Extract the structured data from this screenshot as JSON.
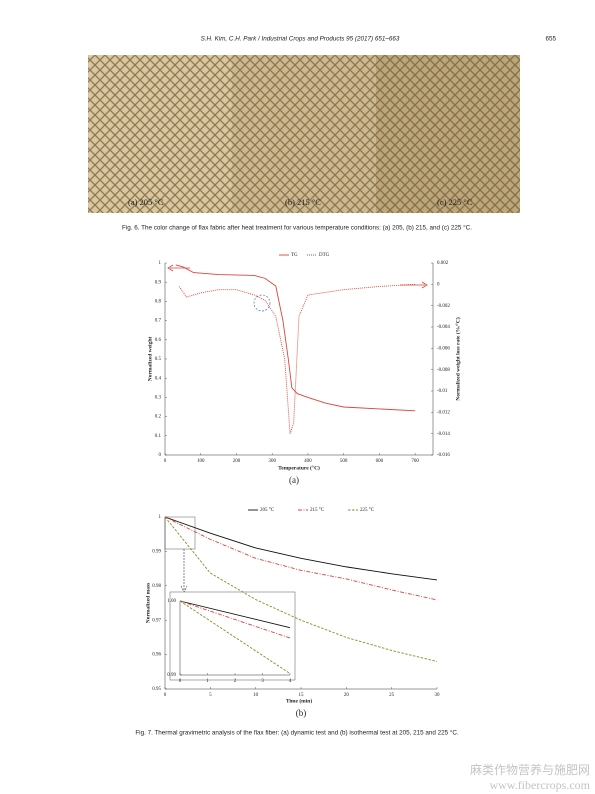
{
  "header": {
    "citation": "S.H. Kim, C.H. Park / Industrial Crops and Products 95 (2017) 651–663",
    "page": "655"
  },
  "figure6": {
    "labels": [
      "(a) 205 °C",
      "(b) 215 °C",
      "(c) 225 °C"
    ],
    "caption": "Fig. 6. The color change of flax fabric after heat treatment for various temperature conditions: (a) 205, (b) 215, and (c) 225 °C."
  },
  "chart_a": {
    "type": "line",
    "label": "(a)",
    "xlabel": "Temperature (°C)",
    "ylabel": "Normalized weight",
    "y2label": "Normalized weight loss rate (%/°C)",
    "xlim": [
      0,
      750
    ],
    "xticks": [
      0,
      100,
      200,
      300,
      400,
      500,
      600,
      700
    ],
    "ylim": [
      0,
      1
    ],
    "yticks": [
      0,
      0.1,
      0.2,
      0.3,
      0.4,
      0.5,
      0.6,
      0.7,
      0.8,
      0.9,
      1
    ],
    "y2lim": [
      -0.016,
      0.002
    ],
    "y2ticks": [
      -0.016,
      -0.014,
      -0.012,
      -0.01,
      -0.008,
      -0.006,
      -0.004,
      -0.002,
      0,
      0.002
    ],
    "series": [
      {
        "name": "TG",
        "color": "#d9453a",
        "dash": "solid",
        "x": [
          30,
          50,
          80,
          150,
          250,
          280,
          310,
          330,
          345,
          355,
          370,
          400,
          450,
          500,
          600,
          700
        ],
        "values": [
          0.99,
          0.98,
          0.95,
          0.94,
          0.935,
          0.92,
          0.88,
          0.7,
          0.5,
          0.35,
          0.32,
          0.3,
          0.27,
          0.25,
          0.24,
          0.23
        ]
      },
      {
        "name": "DTG",
        "color": "#d9453a",
        "dash": "dotted",
        "axis": "y2",
        "x": [
          40,
          60,
          100,
          150,
          200,
          250,
          280,
          310,
          335,
          350,
          360,
          375,
          400,
          500,
          600,
          700
        ],
        "values": [
          -0.0002,
          -0.0012,
          -0.0008,
          -0.0005,
          -0.0005,
          -0.001,
          -0.0015,
          -0.003,
          -0.007,
          -0.014,
          -0.013,
          -0.003,
          -0.001,
          -0.0005,
          -0.0002,
          0
        ]
      }
    ]
  },
  "chart_b": {
    "type": "line",
    "label": "(b)",
    "xlabel": "Time (min)",
    "ylabel": "Normalized mass",
    "xlim": [
      0,
      30
    ],
    "xticks": [
      0,
      5,
      10,
      15,
      20,
      25,
      30
    ],
    "ylim": [
      0.95,
      1
    ],
    "yticks": [
      0.95,
      0.96,
      0.97,
      0.98,
      0.99,
      1
    ],
    "series": [
      {
        "name": "205 °C",
        "color": "#111111",
        "dash": "solid",
        "x": [
          0,
          5,
          10,
          15,
          20,
          25,
          30
        ],
        "values": [
          1,
          0.9953,
          0.991,
          0.988,
          0.9855,
          0.9835,
          0.9817
        ]
      },
      {
        "name": "215 °C",
        "color": "#d9453a",
        "dash": "dashdot",
        "x": [
          0,
          5,
          10,
          15,
          20,
          25,
          30
        ],
        "values": [
          1,
          0.9935,
          0.988,
          0.9845,
          0.982,
          0.9788,
          0.9759
        ]
      },
      {
        "name": "225 °C",
        "color": "#8a8a2a",
        "dash": "dashed",
        "x": [
          0,
          5,
          10,
          15,
          20,
          25,
          30
        ],
        "values": [
          1,
          0.9837,
          0.976,
          0.97,
          0.965,
          0.9612,
          0.958
        ]
      }
    ],
    "inset": {
      "xlim": [
        0,
        4
      ],
      "xticks": [
        0,
        1,
        2,
        3,
        4
      ],
      "ylim": [
        0.99,
        1
      ],
      "yticks": [
        0.99,
        {
          "value": 1,
          "label": "1.00"
        }
      ],
      "series": [
        {
          "color": "#111111",
          "dash": "solid",
          "x": [
            0,
            4
          ],
          "values": [
            1,
            0.9964
          ]
        },
        {
          "color": "#d9453a",
          "dash": "dashdot",
          "x": [
            0,
            4
          ],
          "values": [
            1,
            0.995
          ]
        },
        {
          "color": "#8a8a2a",
          "dash": "dashed",
          "x": [
            0,
            4
          ],
          "values": [
            1,
            0.9902
          ]
        }
      ]
    }
  },
  "figure7": {
    "caption": "Fig. 7. Thermal gravimetric analysis of the flax fiber: (a) dynamic test and (b) isothermal test at 205, 215 and 225 °C."
  },
  "watermark": {
    "line1": "麻类作物营养与施肥网",
    "line2": "www.fibercrops.com"
  }
}
